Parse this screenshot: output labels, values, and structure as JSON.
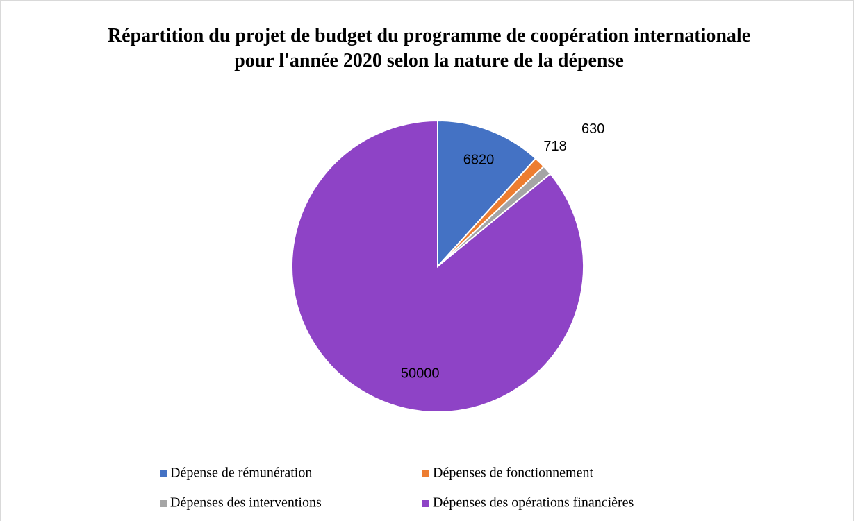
{
  "chart_data": {
    "type": "pie",
    "title": "Répartition du projet de budget du programme de coopération internationale pour l'année 2020 selon la nature de la dépense",
    "categories": [
      "Dépense de rémunération",
      "Dépenses de fonctionnement",
      "Dépenses des interventions",
      "Dépenses des opérations financières"
    ],
    "values": [
      6820,
      718,
      630,
      50000
    ],
    "colors": [
      "#4472c4",
      "#ed7d31",
      "#a5a5a5",
      "#8e43c6"
    ],
    "legend": "bottom"
  }
}
